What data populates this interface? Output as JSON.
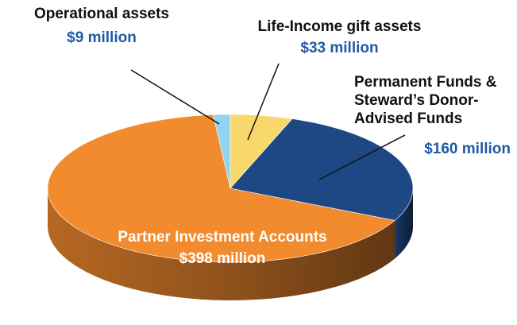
{
  "chart_data": {
    "type": "pie3d",
    "categories": [
      "Operational assets",
      "Life-Income gift assets",
      "Permanent Funds & Steward’s Donor-Advised Funds",
      "Partner Investment Accounts"
    ],
    "values": [
      9,
      33,
      160,
      398
    ],
    "value_labels": [
      "$9 million",
      "$33 million",
      "$160 million",
      "$398 million"
    ],
    "colors": [
      "#8fd4f2",
      "#f8d86a",
      "#1e4884",
      "#f28a2e"
    ]
  }
}
